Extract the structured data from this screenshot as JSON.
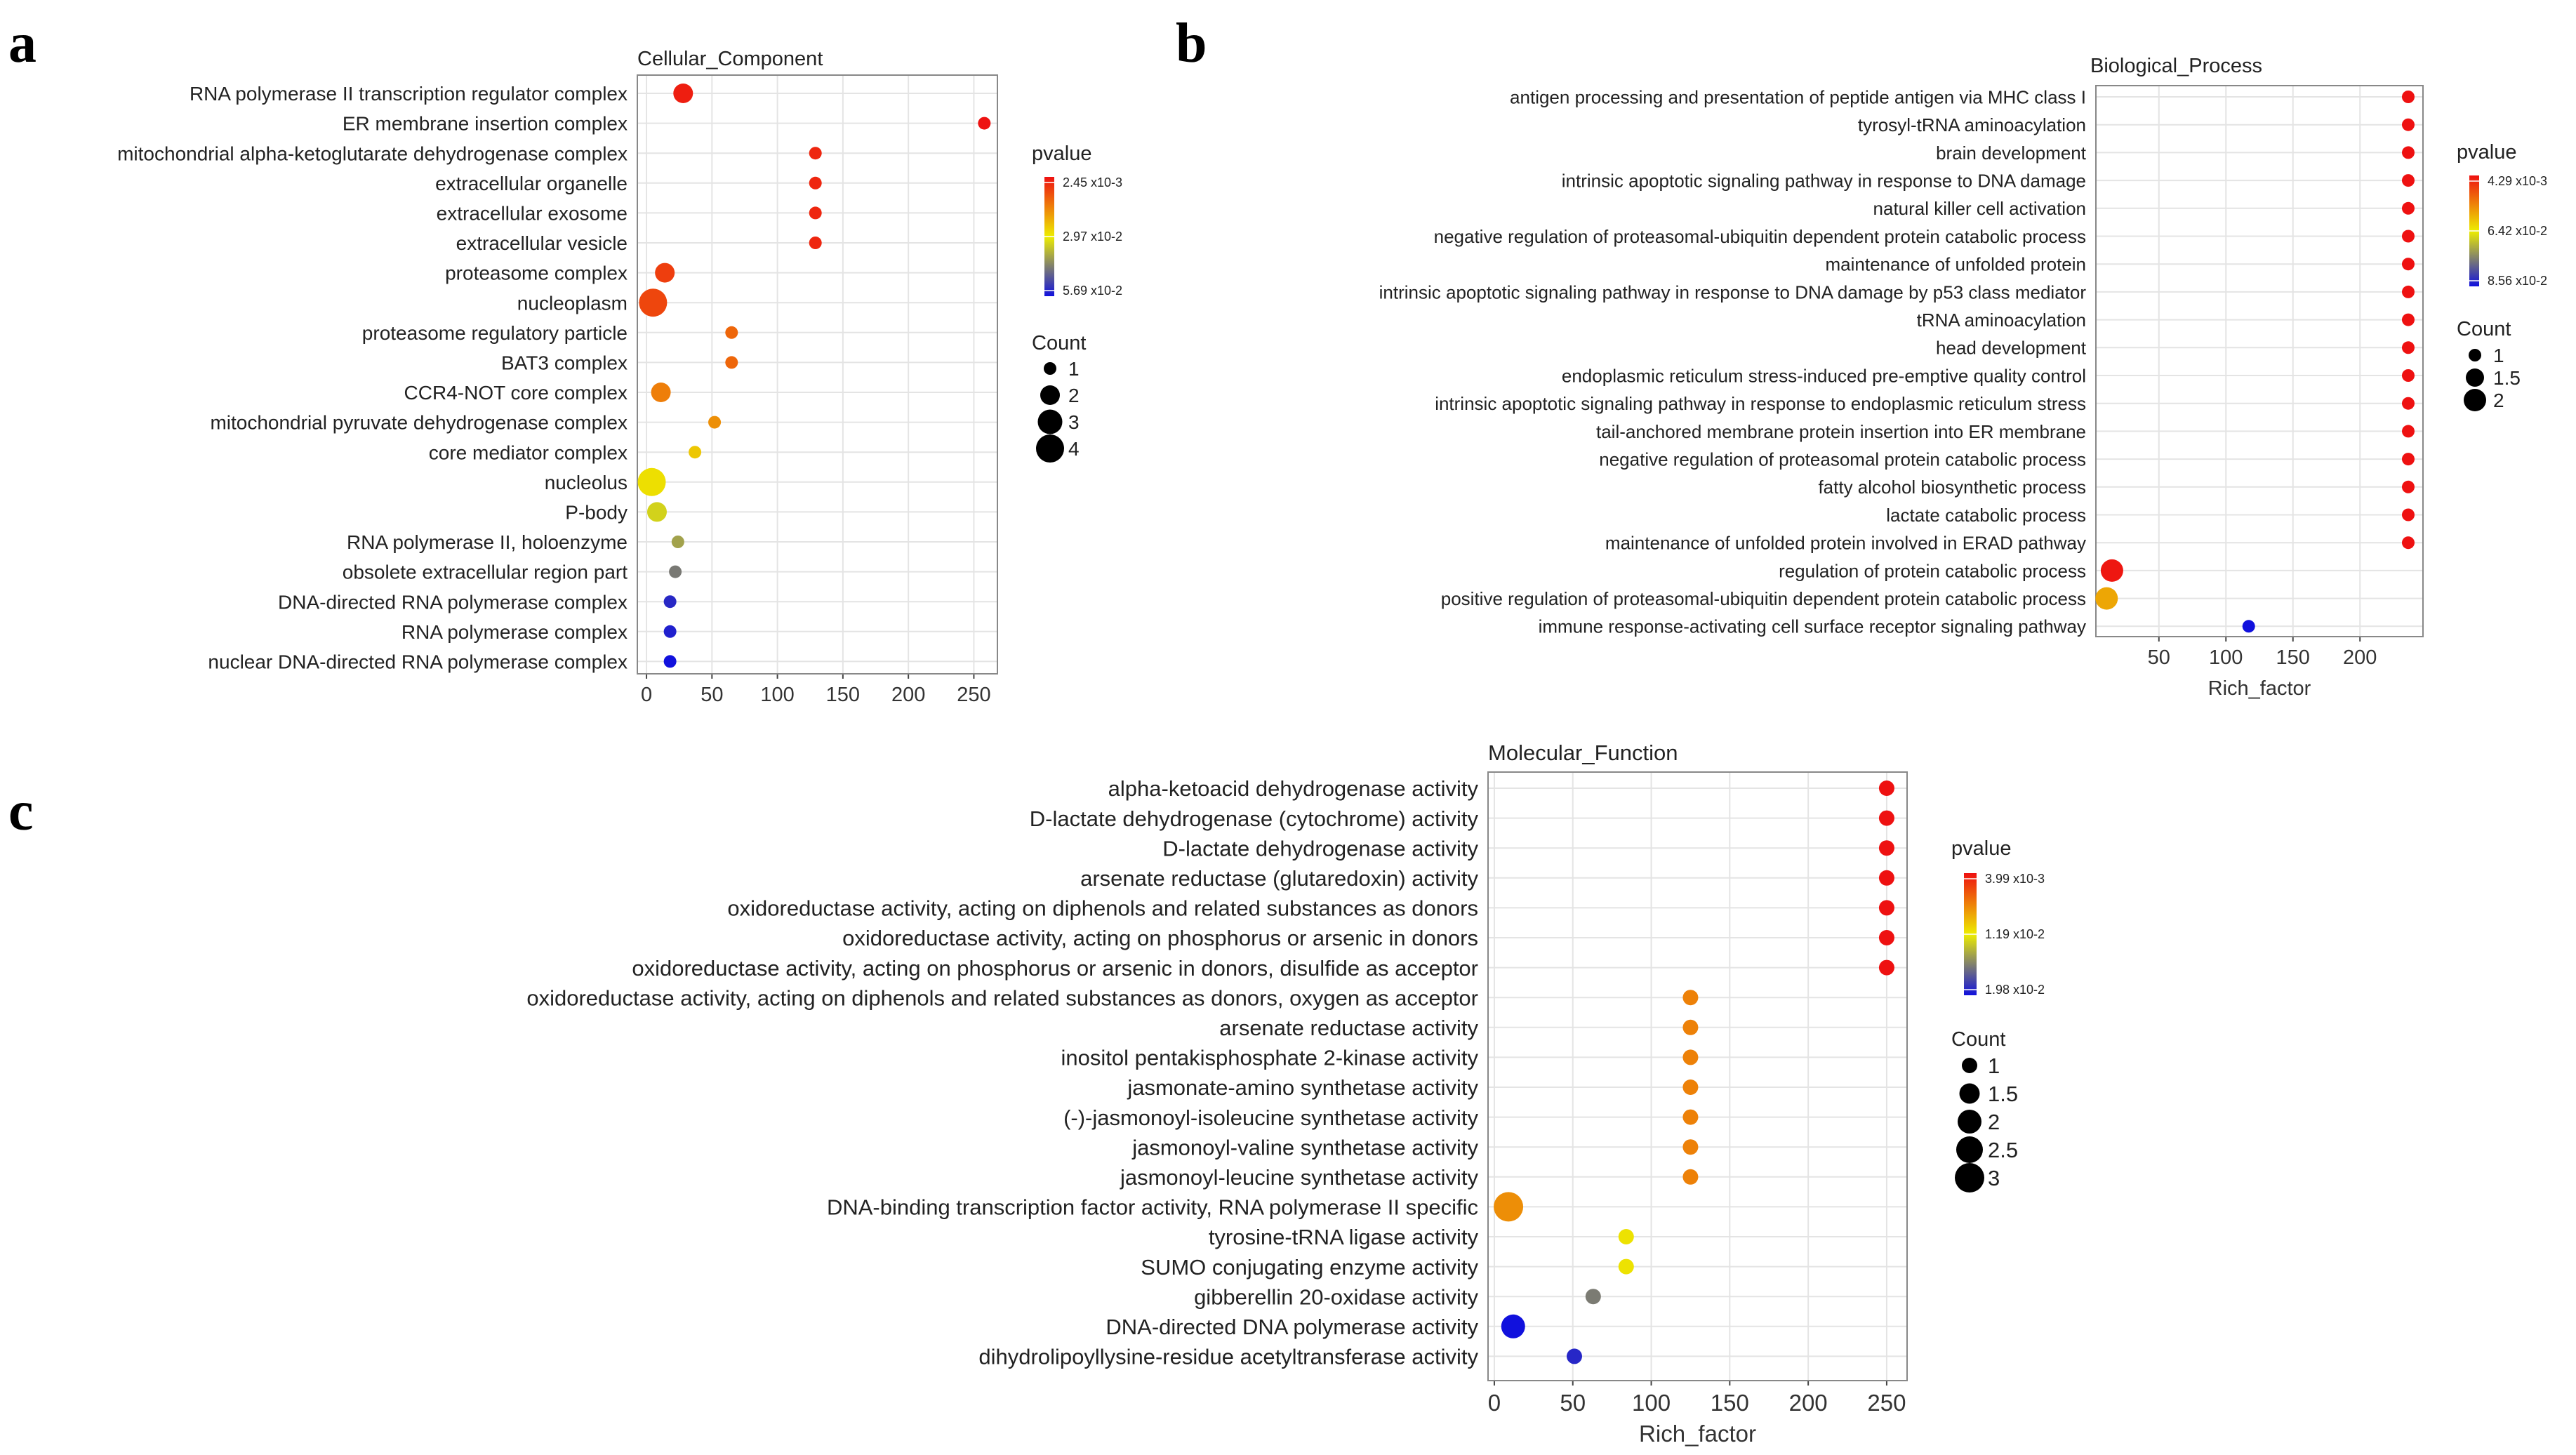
{
  "figure": {
    "panel_labels": [
      "a",
      "b",
      "c"
    ]
  },
  "colors": {
    "low_p": "#ee1111",
    "mid_p": "#eded00",
    "high_p": "#1111dd",
    "grid": "#e4e4e4",
    "frame": "#888888"
  },
  "chart_data": [
    {
      "panel": "a",
      "type": "scatter",
      "title": "Cellular_Component",
      "xlabel": "",
      "ylabel": "",
      "xlim": [
        -7,
        268
      ],
      "xticks": [
        0,
        50,
        100,
        150,
        200,
        250
      ],
      "grid": true,
      "legend_position": "right",
      "pvalue_legend": {
        "title": "pvalue",
        "min": 0.00245,
        "mid": 0.0297,
        "max": 0.0569,
        "labels": [
          "2.45 x10-3",
          "2.97 x10-2",
          "5.69 x10-2"
        ]
      },
      "count_legend": {
        "title": "Count",
        "values": [
          1,
          2,
          3,
          4
        ],
        "labels": [
          "1",
          "2",
          "3",
          "4"
        ]
      },
      "points": [
        {
          "term": "RNA polymerase II transcription regulator complex",
          "rich_factor": 28,
          "count": 2,
          "pvalue": 0.004
        },
        {
          "term": "ER membrane insertion complex",
          "rich_factor": 258,
          "count": 1,
          "pvalue": 0.0026
        },
        {
          "term": "mitochondrial alpha-ketoglutarate dehydrogenase complex",
          "rich_factor": 129,
          "count": 1,
          "pvalue": 0.005
        },
        {
          "term": "extracellular organelle",
          "rich_factor": 129,
          "count": 1,
          "pvalue": 0.005
        },
        {
          "term": "extracellular exosome",
          "rich_factor": 129,
          "count": 1,
          "pvalue": 0.005
        },
        {
          "term": "extracellular vesicle",
          "rich_factor": 129,
          "count": 1,
          "pvalue": 0.005
        },
        {
          "term": "proteasome complex",
          "rich_factor": 14,
          "count": 2,
          "pvalue": 0.008
        },
        {
          "term": "nucleoplasm",
          "rich_factor": 5,
          "count": 4,
          "pvalue": 0.009
        },
        {
          "term": "proteasome regulatory particle",
          "rich_factor": 65,
          "count": 1,
          "pvalue": 0.013
        },
        {
          "term": "BAT3 complex",
          "rich_factor": 65,
          "count": 1,
          "pvalue": 0.013
        },
        {
          "term": "CCR4-NOT core complex",
          "rich_factor": 11,
          "count": 2,
          "pvalue": 0.016
        },
        {
          "term": "mitochondrial pyruvate dehydrogenase complex",
          "rich_factor": 52,
          "count": 1,
          "pvalue": 0.018
        },
        {
          "term": "core mediator complex",
          "rich_factor": 37,
          "count": 1,
          "pvalue": 0.025
        },
        {
          "term": "nucleolus",
          "rich_factor": 4,
          "count": 4,
          "pvalue": 0.028
        },
        {
          "term": "P-body",
          "rich_factor": 8,
          "count": 2,
          "pvalue": 0.033
        },
        {
          "term": "RNA polymerase II, holoenzyme",
          "rich_factor": 24,
          "count": 1,
          "pvalue": 0.039
        },
        {
          "term": "obsolete extracellular region part",
          "rich_factor": 22,
          "count": 1,
          "pvalue": 0.044
        },
        {
          "term": "DNA-directed RNA polymerase complex",
          "rich_factor": 18,
          "count": 1,
          "pvalue": 0.054
        },
        {
          "term": "RNA polymerase complex",
          "rich_factor": 18,
          "count": 1,
          "pvalue": 0.055
        },
        {
          "term": "nuclear DNA-directed RNA polymerase complex",
          "rich_factor": 18,
          "count": 1,
          "pvalue": 0.0569
        }
      ]
    },
    {
      "panel": "b",
      "type": "scatter",
      "title": "Biological_Process",
      "xlabel": "Rich_factor",
      "ylabel": "",
      "xlim": [
        3,
        247
      ],
      "xticks": [
        50,
        100,
        150,
        200
      ],
      "grid": true,
      "legend_position": "right",
      "pvalue_legend": {
        "title": "pvalue",
        "min": 0.00429,
        "mid": 0.0642,
        "max": 0.0856,
        "labels": [
          "4.29 x10-3",
          "6.42 x10-2",
          "8.56 x10-2"
        ]
      },
      "count_legend": {
        "title": "Count",
        "values": [
          1,
          1.5,
          2
        ],
        "labels": [
          "1",
          "1.5",
          "2"
        ]
      },
      "points": [
        {
          "term": "antigen processing and presentation of peptide antigen via MHC class I",
          "rich_factor": 236,
          "count": 1,
          "pvalue": 0.0043
        },
        {
          "term": "tyrosyl-tRNA aminoacylation",
          "rich_factor": 236,
          "count": 1,
          "pvalue": 0.0043
        },
        {
          "term": "brain development",
          "rich_factor": 236,
          "count": 1,
          "pvalue": 0.0043
        },
        {
          "term": "intrinsic apoptotic signaling pathway in response to DNA damage",
          "rich_factor": 236,
          "count": 1,
          "pvalue": 0.0043
        },
        {
          "term": "natural killer cell activation",
          "rich_factor": 236,
          "count": 1,
          "pvalue": 0.0043
        },
        {
          "term": "negative regulation of proteasomal-ubiquitin dependent protein catabolic process",
          "rich_factor": 236,
          "count": 1,
          "pvalue": 0.0043
        },
        {
          "term": "maintenance of unfolded protein",
          "rich_factor": 236,
          "count": 1,
          "pvalue": 0.0043
        },
        {
          "term": "intrinsic apoptotic signaling pathway in response to DNA damage by p53 class mediator",
          "rich_factor": 236,
          "count": 1,
          "pvalue": 0.0043
        },
        {
          "term": "tRNA aminoacylation",
          "rich_factor": 236,
          "count": 1,
          "pvalue": 0.0043
        },
        {
          "term": "head development",
          "rich_factor": 236,
          "count": 1,
          "pvalue": 0.0043
        },
        {
          "term": "endoplasmic reticulum stress-induced pre-emptive quality control",
          "rich_factor": 236,
          "count": 1,
          "pvalue": 0.0043
        },
        {
          "term": "intrinsic apoptotic signaling pathway in response to endoplasmic reticulum stress",
          "rich_factor": 236,
          "count": 1,
          "pvalue": 0.0043
        },
        {
          "term": "tail-anchored membrane protein insertion into ER membrane",
          "rich_factor": 236,
          "count": 1,
          "pvalue": 0.0043
        },
        {
          "term": "negative regulation of proteasomal protein catabolic process",
          "rich_factor": 236,
          "count": 1,
          "pvalue": 0.0043
        },
        {
          "term": "fatty alcohol biosynthetic process",
          "rich_factor": 236,
          "count": 1,
          "pvalue": 0.0043
        },
        {
          "term": "lactate catabolic process",
          "rich_factor": 236,
          "count": 1,
          "pvalue": 0.0043
        },
        {
          "term": "maintenance of unfolded protein involved in ERAD pathway",
          "rich_factor": 236,
          "count": 1,
          "pvalue": 0.0043
        },
        {
          "term": "regulation of protein catabolic process",
          "rich_factor": 15,
          "count": 2,
          "pvalue": 0.006
        },
        {
          "term": "positive regulation of proteasomal-ubiquitin dependent protein catabolic process",
          "rich_factor": 11,
          "count": 2,
          "pvalue": 0.045
        },
        {
          "term": "immune response-activating cell surface receptor signaling pathway",
          "rich_factor": 117,
          "count": 1,
          "pvalue": 0.0856
        }
      ]
    },
    {
      "panel": "c",
      "type": "scatter",
      "title": "Molecular_Function",
      "xlabel": "Rich_factor",
      "ylabel": "",
      "xlim": [
        -4,
        263
      ],
      "xticks": [
        0,
        50,
        100,
        150,
        200,
        250
      ],
      "grid": true,
      "legend_position": "right",
      "pvalue_legend": {
        "title": "pvalue",
        "min": 0.00399,
        "mid": 0.0119,
        "max": 0.0198,
        "labels": [
          "3.99 x10-3",
          "1.19 x10-2",
          "1.98 x10-2"
        ]
      },
      "count_legend": {
        "title": "Count",
        "values": [
          1,
          1.5,
          2,
          2.5,
          3
        ],
        "labels": [
          "1",
          "1.5",
          "2",
          "2.5",
          "3"
        ]
      },
      "points": [
        {
          "term": "alpha-ketoacid dehydrogenase activity",
          "rich_factor": 250,
          "count": 1,
          "pvalue": 0.004
        },
        {
          "term": "D-lactate dehydrogenase (cytochrome) activity",
          "rich_factor": 250,
          "count": 1,
          "pvalue": 0.004
        },
        {
          "term": "D-lactate dehydrogenase activity",
          "rich_factor": 250,
          "count": 1,
          "pvalue": 0.004
        },
        {
          "term": "arsenate reductase (glutaredoxin) activity",
          "rich_factor": 250,
          "count": 1,
          "pvalue": 0.004
        },
        {
          "term": "oxidoreductase activity, acting on diphenols and related substances as donors",
          "rich_factor": 250,
          "count": 1,
          "pvalue": 0.004
        },
        {
          "term": "oxidoreductase activity, acting on phosphorus or arsenic in donors",
          "rich_factor": 250,
          "count": 1,
          "pvalue": 0.004
        },
        {
          "term": "oxidoreductase activity, acting on phosphorus or arsenic in donors, disulfide as acceptor",
          "rich_factor": 250,
          "count": 1,
          "pvalue": 0.004
        },
        {
          "term": "oxidoreductase activity, acting on diphenols and related substances as donors, oxygen as acceptor",
          "rich_factor": 125,
          "count": 1,
          "pvalue": 0.008
        },
        {
          "term": "arsenate reductase activity",
          "rich_factor": 125,
          "count": 1,
          "pvalue": 0.008
        },
        {
          "term": "inositol pentakisphosphate 2-kinase activity",
          "rich_factor": 125,
          "count": 1,
          "pvalue": 0.008
        },
        {
          "term": "jasmonate-amino synthetase activity",
          "rich_factor": 125,
          "count": 1,
          "pvalue": 0.008
        },
        {
          "term": "(-)-jasmonoyl-isoleucine synthetase activity",
          "rich_factor": 125,
          "count": 1,
          "pvalue": 0.008
        },
        {
          "term": "jasmonoyl-valine synthetase activity",
          "rich_factor": 125,
          "count": 1,
          "pvalue": 0.008
        },
        {
          "term": "jasmonoyl-leucine synthetase activity",
          "rich_factor": 125,
          "count": 1,
          "pvalue": 0.008
        },
        {
          "term": "DNA-binding transcription factor activity, RNA polymerase II specific",
          "rich_factor": 9,
          "count": 3,
          "pvalue": 0.0085
        },
        {
          "term": "tyrosine-tRNA ligase activity",
          "rich_factor": 84,
          "count": 1,
          "pvalue": 0.0115
        },
        {
          "term": "SUMO conjugating enzyme activity",
          "rich_factor": 84,
          "count": 1,
          "pvalue": 0.0115
        },
        {
          "term": "gibberellin 20-oxidase activity",
          "rich_factor": 63,
          "count": 1,
          "pvalue": 0.016
        },
        {
          "term": "DNA-directed DNA polymerase activity",
          "rich_factor": 12,
          "count": 2,
          "pvalue": 0.0198
        },
        {
          "term": "dihydrolipoyllysine-residue acetyltransferase activity",
          "rich_factor": 51,
          "count": 1,
          "pvalue": 0.019
        }
      ]
    }
  ]
}
